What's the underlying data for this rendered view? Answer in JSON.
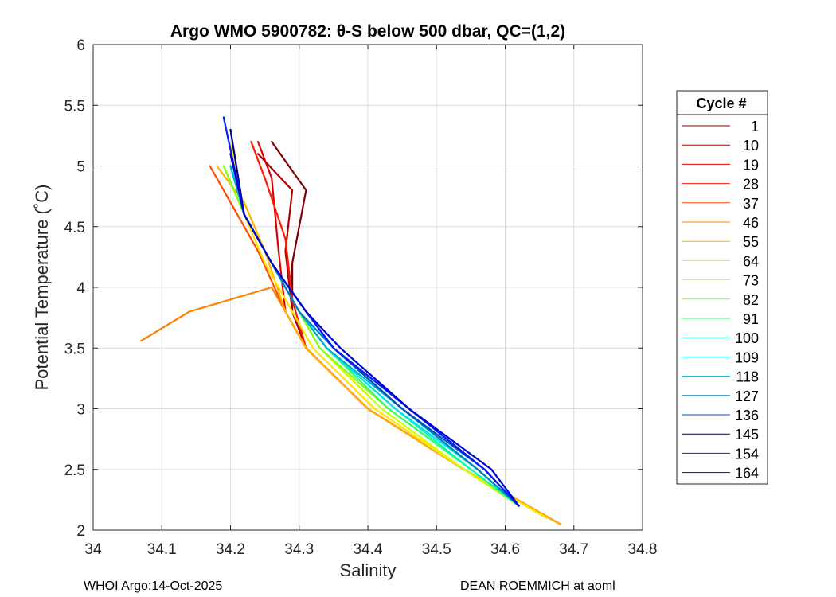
{
  "chart_data": {
    "type": "line",
    "title": "Argo WMO 5900782: θ-S below 500 dbar,  QC=(1,2)",
    "xlabel": "Salinity",
    "ylabel": "Potential Temperature (˚C)",
    "xlim": [
      34.0,
      34.8
    ],
    "ylim": [
      2.0,
      6.0
    ],
    "xticks": [
      34,
      34.1,
      34.2,
      34.3,
      34.4,
      34.5,
      34.6,
      34.7,
      34.8
    ],
    "xtick_labels": [
      "34",
      "34.1",
      "34.2",
      "34.3",
      "34.4",
      "34.5",
      "34.6",
      "34.7",
      "34.8"
    ],
    "yticks": [
      2,
      2.5,
      3,
      3.5,
      4,
      4.5,
      5,
      5.5,
      6
    ],
    "ytick_labels": [
      "2",
      "2.5",
      "3",
      "3.5",
      "4",
      "4.5",
      "5",
      "5.5",
      "6"
    ],
    "grid": true,
    "legend_title": "Cycle #",
    "legend_position": "right, outside",
    "series": [
      {
        "name": "1",
        "color": "#800000",
        "theta": [
          2.05,
          2.5,
          3.0,
          3.5,
          3.8,
          4.2,
          4.8,
          5.2
        ],
        "salinity": [
          34.68,
          34.54,
          34.4,
          34.31,
          34.29,
          34.29,
          34.31,
          34.26
        ]
      },
      {
        "name": "10",
        "color": "#b00000",
        "theta": [
          2.05,
          2.5,
          3.0,
          3.5,
          3.8,
          4.3,
          4.8,
          5.1
        ],
        "salinity": [
          34.68,
          34.54,
          34.4,
          34.31,
          34.29,
          34.28,
          34.29,
          34.24
        ]
      },
      {
        "name": "19",
        "color": "#e00000",
        "theta": [
          2.05,
          2.5,
          3.0,
          3.5,
          3.8,
          4.3,
          4.9,
          5.2
        ],
        "salinity": [
          34.68,
          34.54,
          34.4,
          34.31,
          34.28,
          34.27,
          34.26,
          34.24
        ]
      },
      {
        "name": "28",
        "color": "#ff1a00",
        "theta": [
          2.05,
          2.5,
          3.0,
          3.5,
          3.9,
          4.4,
          4.9,
          5.2
        ],
        "salinity": [
          34.68,
          34.54,
          34.4,
          34.31,
          34.29,
          34.28,
          34.25,
          34.23
        ]
      },
      {
        "name": "37",
        "color": "#ff4d00",
        "theta": [
          2.05,
          2.5,
          3.0,
          3.5,
          3.8,
          4.3,
          4.7,
          5.0
        ],
        "salinity": [
          34.68,
          34.54,
          34.4,
          34.31,
          34.28,
          34.24,
          34.2,
          34.17
        ]
      },
      {
        "name": "46",
        "color": "#ff8000",
        "theta": [
          2.05,
          2.5,
          3.0,
          3.5,
          3.8,
          4.0,
          3.8,
          3.56
        ],
        "salinity": [
          34.68,
          34.54,
          34.4,
          34.31,
          34.28,
          34.26,
          34.14,
          34.07
        ]
      },
      {
        "name": "55",
        "color": "#ffb300",
        "theta": [
          2.05,
          2.5,
          3.0,
          3.5,
          3.8,
          4.3,
          4.7,
          5.0
        ],
        "salinity": [
          34.68,
          34.54,
          34.4,
          34.31,
          34.28,
          34.25,
          34.22,
          34.18
        ]
      },
      {
        "name": "64",
        "color": "#ffe600",
        "theta": [
          2.1,
          2.5,
          3.0,
          3.5,
          3.8,
          4.2,
          4.6,
          5.2
        ],
        "salinity": [
          34.66,
          34.54,
          34.41,
          34.32,
          34.29,
          34.25,
          34.22,
          34.2
        ]
      },
      {
        "name": "73",
        "color": "#ccff00",
        "theta": [
          2.2,
          2.5,
          3.0,
          3.5,
          3.8,
          4.2,
          4.6,
          5.0
        ],
        "salinity": [
          34.62,
          34.54,
          34.42,
          34.33,
          34.3,
          34.26,
          34.22,
          34.19
        ]
      },
      {
        "name": "82",
        "color": "#80ff1a",
        "theta": [
          2.2,
          2.5,
          3.0,
          3.5,
          3.8,
          4.2,
          4.6,
          5.0
        ],
        "salinity": [
          34.62,
          34.55,
          34.43,
          34.33,
          34.3,
          34.26,
          34.22,
          34.19
        ]
      },
      {
        "name": "91",
        "color": "#33ff66",
        "theta": [
          2.2,
          2.5,
          3.0,
          3.5,
          3.8,
          4.2,
          4.6,
          5.0
        ],
        "salinity": [
          34.62,
          34.55,
          34.43,
          34.34,
          34.3,
          34.26,
          34.22,
          34.2
        ]
      },
      {
        "name": "100",
        "color": "#00ffb3",
        "theta": [
          2.2,
          2.5,
          3.0,
          3.5,
          3.8,
          4.2,
          4.6,
          5.0
        ],
        "salinity": [
          34.62,
          34.55,
          34.44,
          34.34,
          34.3,
          34.26,
          34.22,
          34.2
        ]
      },
      {
        "name": "109",
        "color": "#00e6e6",
        "theta": [
          2.2,
          2.5,
          3.0,
          3.5,
          3.8,
          4.2,
          4.6,
          5.0
        ],
        "salinity": [
          34.62,
          34.56,
          34.44,
          34.34,
          34.3,
          34.26,
          34.22,
          34.2
        ]
      },
      {
        "name": "118",
        "color": "#00b3cc",
        "theta": [
          2.2,
          2.5,
          3.0,
          3.5,
          3.8,
          4.2,
          4.6,
          5.0
        ],
        "salinity": [
          34.62,
          34.56,
          34.45,
          34.34,
          34.3,
          34.26,
          34.22,
          34.2
        ]
      },
      {
        "name": "127",
        "color": "#0080c0",
        "theta": [
          2.2,
          2.5,
          3.0,
          3.5,
          3.8,
          4.2,
          4.6,
          5.1
        ],
        "salinity": [
          34.62,
          34.56,
          34.45,
          34.35,
          34.3,
          34.26,
          34.22,
          34.2
        ]
      },
      {
        "name": "136",
        "color": "#0050c0",
        "theta": [
          2.2,
          2.5,
          3.0,
          3.5,
          3.8,
          4.2,
          4.6,
          5.1
        ],
        "salinity": [
          34.62,
          34.57,
          34.45,
          34.35,
          34.31,
          34.26,
          34.22,
          34.2
        ]
      },
      {
        "name": "145",
        "color": "#000090",
        "theta": [
          2.2,
          2.5,
          3.0,
          3.5,
          3.8,
          4.2,
          4.6,
          5.3
        ],
        "salinity": [
          34.62,
          34.57,
          34.46,
          34.35,
          34.31,
          34.26,
          34.22,
          34.2
        ]
      },
      {
        "name": "154",
        "color": "#0020ff",
        "theta": [
          2.2,
          2.5,
          3.0,
          3.5,
          3.8,
          4.2,
          4.6,
          5.4
        ],
        "salinity": [
          34.62,
          34.57,
          34.46,
          34.35,
          34.31,
          34.26,
          34.22,
          34.19
        ]
      },
      {
        "name": "164",
        "color": "#0000d0",
        "theta": [
          2.2,
          2.5,
          3.0,
          3.5,
          3.8,
          4.2,
          4.6,
          5.1
        ],
        "salinity": [
          34.62,
          34.58,
          34.46,
          34.36,
          34.31,
          34.26,
          34.22,
          34.2
        ]
      }
    ]
  },
  "footer": {
    "left": "WHOI Argo:14-Oct-2025",
    "right": "DEAN ROEMMICH at aoml"
  }
}
